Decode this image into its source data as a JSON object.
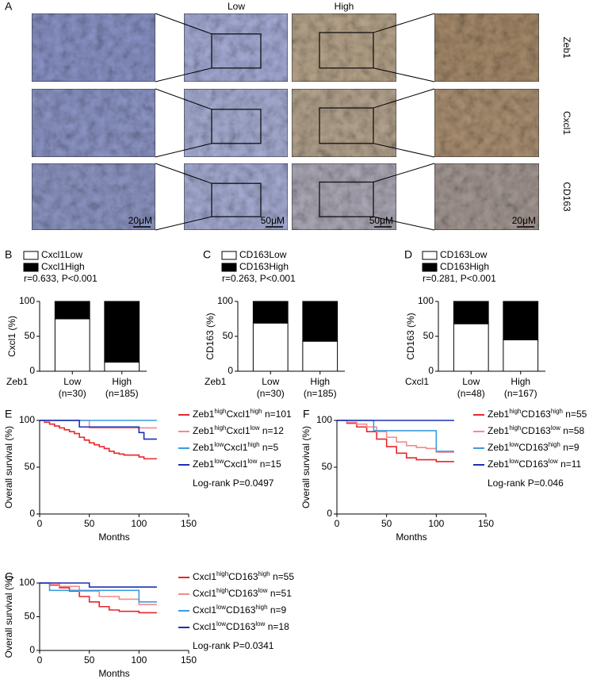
{
  "panel_a": {
    "label": "A",
    "columns": [
      "Low",
      "High"
    ],
    "rows": [
      "Zeb1",
      "Cxcl1",
      "CD163"
    ],
    "scale_bars": [
      "20μM",
      "50μM",
      "50μM",
      "20μM"
    ]
  },
  "chart_data": [
    {
      "type": "bar",
      "stacked": true,
      "panel": "B",
      "ylabel": "Cxcl1 (%)",
      "xlabel": "Zeb1",
      "categories": [
        "Low",
        "High"
      ],
      "category_notes": [
        "(n=30)",
        "(n=185)"
      ],
      "series": [
        {
          "name": "Cxcl1Low",
          "color": "#ffffff",
          "values": [
            75,
            13
          ]
        },
        {
          "name": "Cxcl1High",
          "color": "#000000",
          "values": [
            25,
            87
          ]
        }
      ],
      "annotation": "r=0.633, P<0.001",
      "ylim": [
        0,
        100
      ],
      "yticks": [
        0,
        50,
        100
      ]
    },
    {
      "type": "bar",
      "stacked": true,
      "panel": "C",
      "ylabel": "CD163 (%)",
      "xlabel": "Zeb1",
      "categories": [
        "Low",
        "High"
      ],
      "category_notes": [
        "(n=30)",
        "(n=185)"
      ],
      "series": [
        {
          "name": "CD163Low",
          "color": "#ffffff",
          "values": [
            69,
            43
          ]
        },
        {
          "name": "CD163High",
          "color": "#000000",
          "values": [
            31,
            57
          ]
        }
      ],
      "annotation": "r=0.263, P<0.001",
      "ylim": [
        0,
        100
      ],
      "yticks": [
        0,
        50,
        100
      ]
    },
    {
      "type": "bar",
      "stacked": true,
      "panel": "D",
      "ylabel": "CD163 (%)",
      "xlabel": "Cxcl1",
      "categories": [
        "Low",
        "High"
      ],
      "category_notes": [
        "(n=48)",
        "(n=167)"
      ],
      "series": [
        {
          "name": "CD163Low",
          "color": "#ffffff",
          "values": [
            68,
            45
          ]
        },
        {
          "name": "CD163High",
          "color": "#000000",
          "values": [
            32,
            55
          ]
        }
      ],
      "annotation": "r=0.281, P<0.001",
      "ylim": [
        0,
        100
      ],
      "yticks": [
        0,
        50,
        100
      ]
    },
    {
      "type": "line",
      "step": true,
      "panel": "E",
      "ylabel": "Overall survival (%)",
      "xlabel": "Months",
      "annotation": "Log-rank P=0.0497",
      "series": [
        {
          "name": "Zeb1highCxcl1high n=101",
          "color": "#e8262b",
          "x": [
            0,
            5,
            10,
            15,
            20,
            25,
            30,
            35,
            40,
            45,
            50,
            55,
            60,
            65,
            70,
            75,
            80,
            85,
            90,
            100,
            105,
            118
          ],
          "values": [
            100,
            98,
            96,
            94,
            92,
            90,
            88,
            86,
            82,
            79,
            76,
            74,
            72,
            70,
            67,
            65,
            64,
            63,
            63,
            61,
            59,
            59
          ]
        },
        {
          "name": "Zeb1highCxcl1low n=12",
          "color": "#f48a8a",
          "x": [
            0,
            50,
            118
          ],
          "values": [
            100,
            92,
            92
          ]
        },
        {
          "name": "Zeb1lowCxcl1high n=5",
          "color": "#3d9be0",
          "x": [
            0,
            118
          ],
          "values": [
            100,
            100
          ]
        },
        {
          "name": "Zeb1lowCxcl1low n=15",
          "color": "#1f2fb5",
          "x": [
            0,
            40,
            100,
            105,
            118
          ],
          "values": [
            100,
            93,
            87,
            80,
            80
          ]
        }
      ],
      "xlim": [
        0,
        150
      ],
      "xticks": [
        0,
        50,
        100,
        150
      ],
      "ylim": [
        0,
        100
      ],
      "yticks": [
        0,
        50,
        100
      ]
    },
    {
      "type": "line",
      "step": true,
      "panel": "F",
      "ylabel": "Overall survival (%)",
      "xlabel": "Months",
      "annotation": "Log-rank P=0.046",
      "series": [
        {
          "name": "Zeb1highCD163high n=55",
          "color": "#e8262b",
          "x": [
            0,
            10,
            20,
            30,
            40,
            50,
            60,
            70,
            80,
            100,
            118
          ],
          "values": [
            100,
            97,
            93,
            88,
            80,
            72,
            65,
            60,
            58,
            56,
            56
          ]
        },
        {
          "name": "Zeb1highCD163low n=58",
          "color": "#f48a8a",
          "x": [
            0,
            10,
            20,
            30,
            40,
            50,
            60,
            70,
            80,
            90,
            100,
            118
          ],
          "values": [
            100,
            98,
            96,
            93,
            88,
            82,
            77,
            73,
            71,
            70,
            66,
            66
          ]
        },
        {
          "name": "Zeb1lowCD163high n=9",
          "color": "#3d9be0",
          "x": [
            0,
            37,
            100,
            118
          ],
          "values": [
            100,
            89,
            67,
            67
          ]
        },
        {
          "name": "Zeb1lowCD163low n=11",
          "color": "#1f2fb5",
          "x": [
            0,
            118
          ],
          "values": [
            100,
            100
          ]
        }
      ],
      "xlim": [
        0,
        150
      ],
      "xticks": [
        0,
        50,
        100,
        150
      ],
      "ylim": [
        0,
        100
      ],
      "yticks": [
        0,
        50,
        100
      ]
    },
    {
      "type": "line",
      "step": true,
      "panel": "G",
      "ylabel": "Overall survival (%)",
      "xlabel": "Months",
      "annotation": "Log-rank P=0.0341",
      "series": [
        {
          "name": "Cxcl1highCD163high n=55",
          "color": "#e8262b",
          "x": [
            0,
            10,
            20,
            30,
            40,
            50,
            60,
            70,
            80,
            100,
            118
          ],
          "values": [
            100,
            97,
            93,
            88,
            80,
            72,
            65,
            60,
            58,
            56,
            56
          ]
        },
        {
          "name": "Cxcl1highCD163low n=51",
          "color": "#f48a8a",
          "x": [
            0,
            20,
            40,
            60,
            80,
            100,
            118
          ],
          "values": [
            100,
            95,
            88,
            80,
            76,
            68,
            68
          ]
        },
        {
          "name": "Cxcl1lowCD163high n=9",
          "color": "#3d9be0",
          "x": [
            0,
            10,
            100,
            118
          ],
          "values": [
            100,
            89,
            72,
            72
          ]
        },
        {
          "name": "Cxcl1lowCD163low n=18",
          "color": "#1f2fb5",
          "x": [
            0,
            50,
            118
          ],
          "values": [
            100,
            94,
            94
          ]
        }
      ],
      "xlim": [
        0,
        150
      ],
      "xticks": [
        0,
        50,
        100,
        150
      ],
      "ylim": [
        0,
        100
      ],
      "yticks": [
        0,
        50,
        100
      ]
    }
  ]
}
